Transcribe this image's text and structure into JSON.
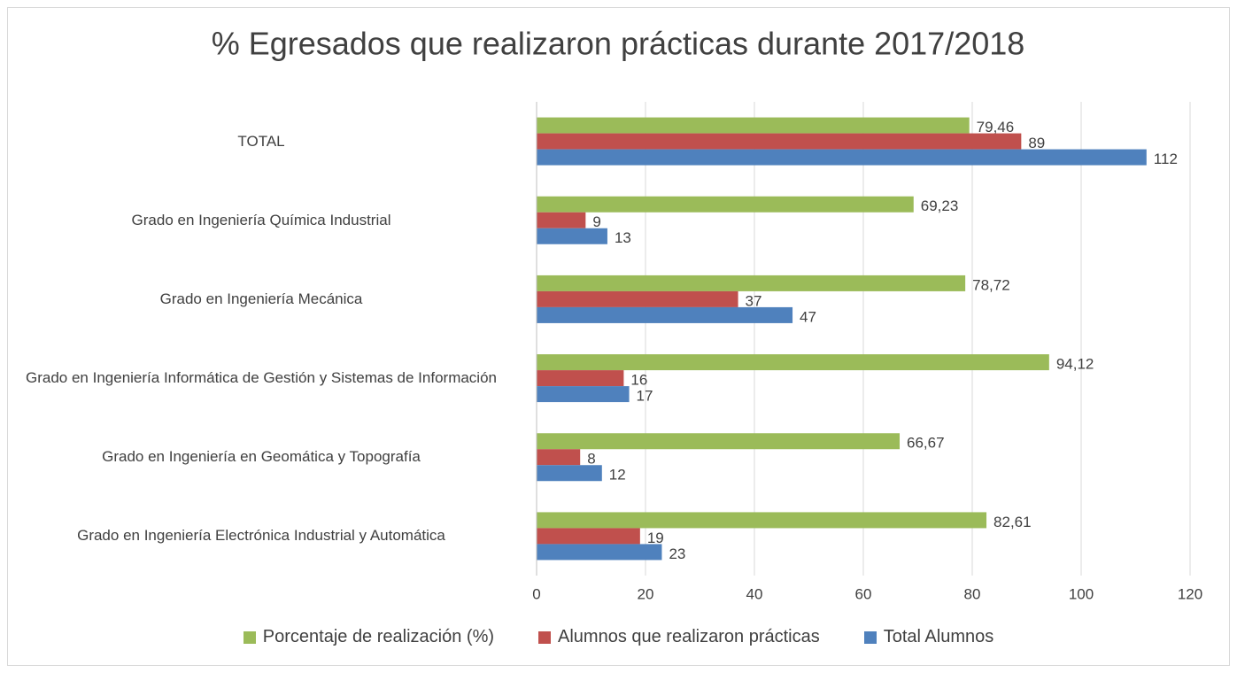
{
  "chart_data": {
    "type": "hbar",
    "title": "% Egresados que realizaron prácticas durante 2017/2018",
    "categories": [
      "TOTAL",
      "Grado en Ingeniería Química Industrial",
      "Grado en Ingeniería Mecánica",
      "Grado en Ingeniería Informática de Gestión y Sistemas de Información",
      "Grado en Ingeniería en Geomática y Topografía",
      "Grado en Ingeniería Electrónica Industrial y Automática"
    ],
    "series": [
      {
        "name": "Porcentaje de realización (%)",
        "color": "#9bbb59",
        "values": [
          79.46,
          69.23,
          78.72,
          94.12,
          66.67,
          82.61
        ],
        "value_labels": [
          "79,46",
          "69,23",
          "78,72",
          "94,12",
          "66,67",
          "82,61"
        ]
      },
      {
        "name": "Alumnos que realizaron prácticas",
        "color": "#c0504d",
        "values": [
          89,
          9,
          37,
          16,
          8,
          19
        ]
      },
      {
        "name": "Total Alumnos",
        "color": "#4f81bd",
        "values": [
          112,
          13,
          47,
          17,
          12,
          23
        ]
      }
    ],
    "xlim": [
      0,
      120
    ],
    "xticks": [
      0,
      20,
      40,
      60,
      80,
      100,
      120
    ],
    "grid": true,
    "legend": "bottom"
  }
}
